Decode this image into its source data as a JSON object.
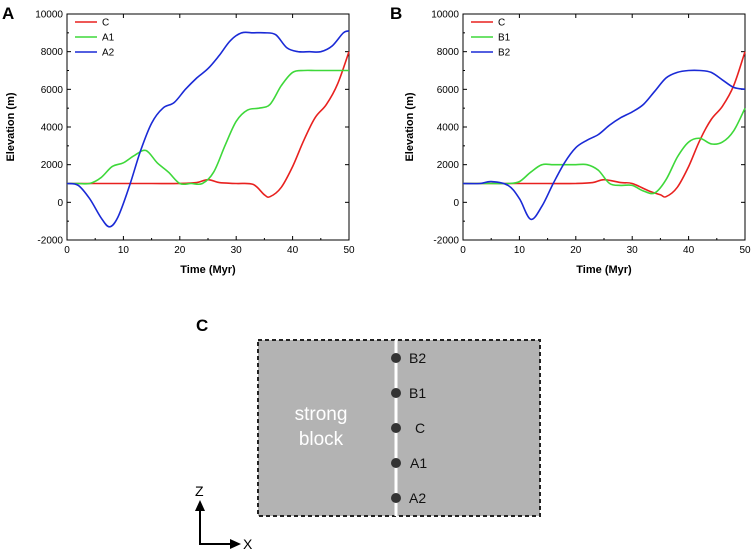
{
  "panels": [
    {
      "label": "A",
      "chart_data": {
        "type": "line",
        "xlabel": "Time (Myr)",
        "ylabel": "Elevation (m)",
        "xlim": [
          0,
          50
        ],
        "ylim": [
          -2000,
          10000
        ],
        "xticks": [
          0,
          10,
          20,
          30,
          40,
          50
        ],
        "yticks": [
          -2000,
          0,
          2000,
          4000,
          6000,
          8000,
          10000
        ],
        "legend_position": "top-left",
        "series": [
          {
            "name": "C",
            "color": "#e8211f",
            "x": [
              0,
              5,
              10,
              15,
              20,
              23,
              25,
              27,
              30,
              33,
              35,
              36,
              38,
              40,
              42,
              44,
              46,
              48,
              50
            ],
            "y": [
              1000,
              1000,
              1000,
              1000,
              1000,
              1050,
              1200,
              1050,
              1000,
              950,
              400,
              300,
              800,
              1900,
              3300,
              4500,
              5200,
              6300,
              8000
            ]
          },
          {
            "name": "A1",
            "color": "#3ed83a",
            "x": [
              0,
              2,
              4,
              6,
              8,
              10,
              12,
              14,
              16,
              18,
              20,
              22,
              24,
              26,
              28,
              30,
              32,
              34,
              36,
              38,
              40,
              42,
              44,
              46,
              48,
              50
            ],
            "y": [
              1000,
              1000,
              1000,
              1300,
              1900,
              2100,
              2500,
              2750,
              2100,
              1600,
              1000,
              1000,
              1000,
              1600,
              3000,
              4300,
              4900,
              5000,
              5200,
              6200,
              6900,
              7000,
              7000,
              7000,
              7000,
              7000
            ]
          },
          {
            "name": "A2",
            "color": "#1a2ad6",
            "x": [
              0,
              2,
              4,
              6,
              7.5,
              9,
              11,
              13,
              15,
              17,
              19,
              21,
              23,
              25,
              27,
              29,
              31,
              33,
              35,
              37,
              39,
              41,
              43,
              45,
              47,
              49,
              50
            ],
            "y": [
              1000,
              900,
              200,
              -800,
              -1300,
              -800,
              800,
              2700,
              4200,
              5000,
              5300,
              6000,
              6600,
              7100,
              7800,
              8600,
              9000,
              9000,
              9000,
              8900,
              8200,
              8000,
              8000,
              8000,
              8300,
              9000,
              9100
            ]
          }
        ]
      }
    },
    {
      "label": "B",
      "chart_data": {
        "type": "line",
        "xlabel": "Time (Myr)",
        "ylabel": "Elevation (m)",
        "xlim": [
          0,
          50
        ],
        "ylim": [
          -2000,
          10000
        ],
        "xticks": [
          0,
          10,
          20,
          30,
          40,
          50
        ],
        "yticks": [
          -2000,
          0,
          2000,
          4000,
          6000,
          8000,
          10000
        ],
        "legend_position": "top-right",
        "series": [
          {
            "name": "C",
            "color": "#e8211f",
            "x": [
              0,
              5,
              10,
              15,
              20,
              23,
              25,
              28,
              30,
              33,
              35,
              36,
              38,
              40,
              42,
              44,
              46,
              48,
              50
            ],
            "y": [
              1000,
              1000,
              1000,
              1000,
              1000,
              1050,
              1200,
              1050,
              1000,
              600,
              400,
              300,
              800,
              1900,
              3300,
              4400,
              5100,
              6200,
              8000
            ]
          },
          {
            "name": "B1",
            "color": "#3ed83a",
            "x": [
              0,
              5,
              8,
              10,
              12,
              14,
              16,
              18,
              20,
              22,
              24,
              26,
              28,
              30,
              32,
              34,
              36,
              38,
              40,
              42,
              44,
              46,
              48,
              50
            ],
            "y": [
              1000,
              1000,
              1000,
              1100,
              1600,
              2000,
              2000,
              2000,
              2000,
              2000,
              1700,
              1000,
              900,
              900,
              600,
              500,
              1200,
              2400,
              3200,
              3400,
              3100,
              3200,
              3800,
              5000
            ]
          },
          {
            "name": "B2",
            "color": "#1a2ad6",
            "x": [
              0,
              3,
              5,
              8,
              10,
              12,
              14,
              16,
              18,
              20,
              22,
              24,
              26,
              28,
              30,
              32,
              34,
              36,
              38,
              40,
              42,
              44,
              46,
              48,
              50
            ],
            "y": [
              1000,
              1000,
              1100,
              900,
              200,
              -900,
              -200,
              1000,
              2100,
              2900,
              3300,
              3600,
              4100,
              4500,
              4800,
              5200,
              5900,
              6600,
              6900,
              7000,
              7000,
              6900,
              6500,
              6100,
              6000
            ]
          }
        ]
      }
    }
  ],
  "diagram": {
    "label": "C",
    "block_line1": "strong",
    "block_line2": "block",
    "points": [
      "B2",
      "B1",
      "C",
      "A1",
      "A2"
    ],
    "axis_z": "Z",
    "axis_x": "X"
  }
}
